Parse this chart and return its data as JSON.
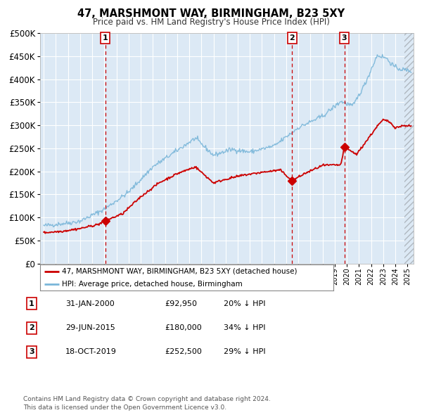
{
  "title": "47, MARSHMONT WAY, BIRMINGHAM, B23 5XY",
  "subtitle": "Price paid vs. HM Land Registry's House Price Index (HPI)",
  "background_color": "#ffffff",
  "plot_bg_color": "#dce9f5",
  "grid_color": "#ffffff",
  "hpi_color": "#7ab6d9",
  "price_color": "#cc0000",
  "marker_color": "#cc0000",
  "dashed_line_color": "#cc0000",
  "ylim": [
    0,
    500000
  ],
  "yticks": [
    0,
    50000,
    100000,
    150000,
    200000,
    250000,
    300000,
    350000,
    400000,
    450000,
    500000
  ],
  "xlim_start": 1994.7,
  "xlim_end": 2025.5,
  "sale_dates": [
    2000.08,
    2015.49,
    2019.79
  ],
  "sale_prices": [
    92950,
    180000,
    252500
  ],
  "sale_labels": [
    "1",
    "2",
    "3"
  ],
  "footer_text": "Contains HM Land Registry data © Crown copyright and database right 2024.\nThis data is licensed under the Open Government Licence v3.0.",
  "legend_entries": [
    "47, MARSHMONT WAY, BIRMINGHAM, B23 5XY (detached house)",
    "HPI: Average price, detached house, Birmingham"
  ],
  "table_data": [
    [
      "1",
      "31-JAN-2000",
      "£92,950",
      "20% ↓ HPI"
    ],
    [
      "2",
      "29-JUN-2015",
      "£180,000",
      "34% ↓ HPI"
    ],
    [
      "3",
      "18-OCT-2019",
      "£252,500",
      "29% ↓ HPI"
    ]
  ]
}
